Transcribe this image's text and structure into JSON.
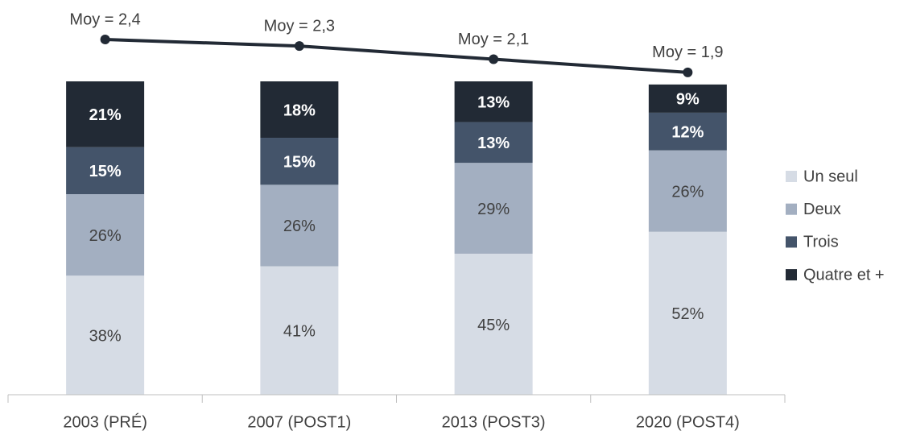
{
  "chart_data": {
    "type": "bar",
    "stacked": true,
    "categories": [
      "2003 (PRÉ)",
      "2007 (POST1)",
      "2013 (POST3)",
      "2020 (POST4)"
    ],
    "series": [
      {
        "name": "Un seul",
        "color": "#d6dce5",
        "values": [
          38,
          41,
          45,
          52
        ],
        "value_labels": [
          "38%",
          "41%",
          "45%",
          "52%"
        ]
      },
      {
        "name": "Deux",
        "color": "#a3afc1",
        "values": [
          26,
          26,
          29,
          26
        ],
        "value_labels": [
          "26%",
          "26%",
          "29%",
          "26%"
        ]
      },
      {
        "name": "Trois",
        "color": "#44546a",
        "values": [
          15,
          15,
          13,
          12
        ],
        "value_labels": [
          "15%",
          "15%",
          "13%",
          "12%"
        ]
      },
      {
        "name": "Quatre et +",
        "color": "#222a35",
        "values": [
          21,
          18,
          13,
          9
        ],
        "value_labels": [
          "21%",
          "18%",
          "13%",
          "9%"
        ]
      }
    ],
    "line": {
      "type": "line",
      "axis": "y2",
      "color": "#222a35",
      "values": [
        2.4,
        2.3,
        2.1,
        1.9
      ],
      "value_labels": [
        "Moy = 2,4",
        "Moy = 2,3",
        "Moy = 2,1",
        "Moy = 1,9"
      ]
    },
    "ylim": [
      0,
      100
    ],
    "y2lim": [
      -3,
      3
    ],
    "legend": "right"
  }
}
